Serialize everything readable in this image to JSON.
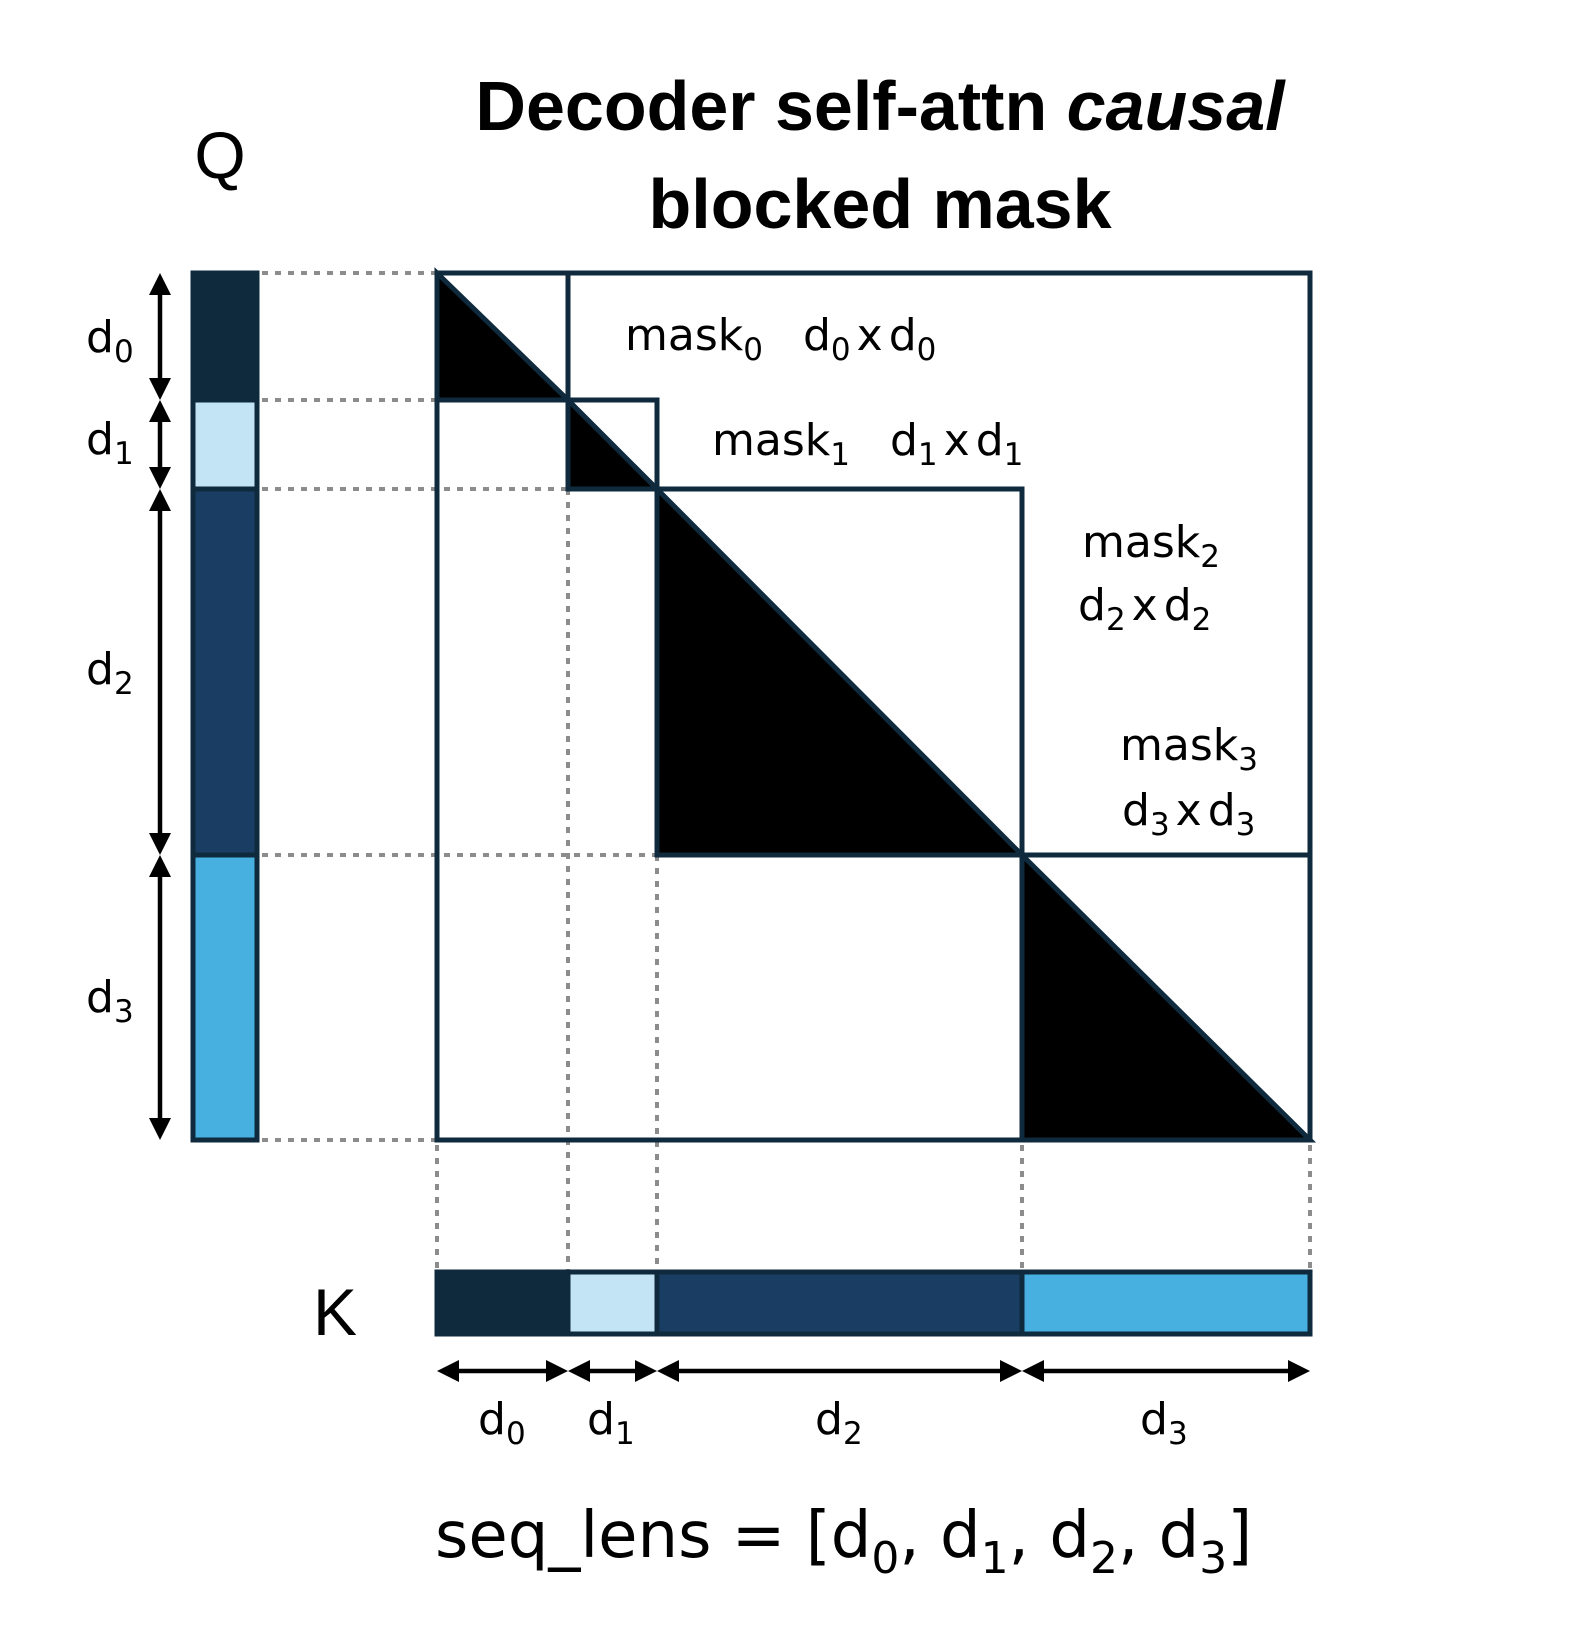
{
  "title": {
    "line1_prefix": "Decoder self-attn ",
    "line1_emph": "causal",
    "line2": "blocked mask"
  },
  "axis_labels": {
    "q": "Q",
    "k": "K"
  },
  "segments": [
    {
      "name": "d",
      "sub": "0",
      "color": "#0e2a3c"
    },
    {
      "name": "d",
      "sub": "1",
      "color": "#c3e4f5"
    },
    {
      "name": "d",
      "sub": "2",
      "color": "#1a3d64"
    },
    {
      "name": "d",
      "sub": "3",
      "color": "#48b0e0"
    }
  ],
  "masks": [
    {
      "name": "mask",
      "sub": "0",
      "dim": {
        "a": "d",
        "a_sub": "0",
        "x": "x",
        "b": "d",
        "b_sub": "0"
      }
    },
    {
      "name": "mask",
      "sub": "1",
      "dim": {
        "a": "d",
        "a_sub": "1",
        "x": "x",
        "b": "d",
        "b_sub": "1"
      }
    },
    {
      "name": "mask",
      "sub": "2",
      "dim": {
        "a": "d",
        "a_sub": "2",
        "x": "x",
        "b": "d",
        "b_sub": "2"
      }
    },
    {
      "name": "mask",
      "sub": "3",
      "dim": {
        "a": "d",
        "a_sub": "3",
        "x": "x",
        "b": "d",
        "b_sub": "3"
      }
    }
  ],
  "seq_lens": {
    "prefix": "seq_lens = [",
    "items": [
      {
        "name": "d",
        "sub": "0"
      },
      {
        "name": "d",
        "sub": "1"
      },
      {
        "name": "d",
        "sub": "2"
      },
      {
        "name": "d",
        "sub": "3"
      }
    ],
    "separator": ", ",
    "suffix": "]"
  },
  "colors": {
    "outline": "#0e2a3c",
    "mask_fill": "#000000",
    "guide_lines": "#8c8c8c"
  }
}
